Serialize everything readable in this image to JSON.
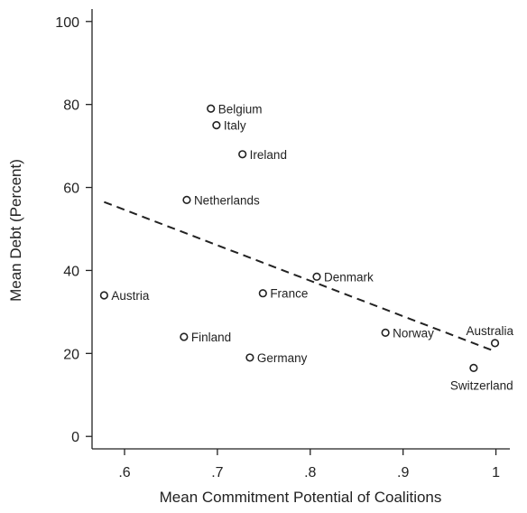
{
  "chart_data": {
    "type": "scatter",
    "xlabel": "Mean Commitment Potential of Coalitions",
    "ylabel": "Mean Debt (Percent)",
    "xlim": [
      0.565,
      1.015
    ],
    "ylim": [
      -3,
      103
    ],
    "x_ticks": [
      0.6,
      0.7,
      0.8,
      0.9,
      1.0
    ],
    "x_tick_labels": [
      ".6",
      ".7",
      ".8",
      ".9",
      "1"
    ],
    "y_ticks": [
      0,
      20,
      40,
      60,
      80,
      100
    ],
    "y_tick_labels": [
      "0",
      "20",
      "40",
      "60",
      "80",
      "100"
    ],
    "grid": false,
    "points": [
      {
        "label": "Belgium",
        "x": 0.693,
        "y": 79,
        "label_pos": "right"
      },
      {
        "label": "Italy",
        "x": 0.699,
        "y": 75,
        "label_pos": "right"
      },
      {
        "label": "Ireland",
        "x": 0.727,
        "y": 68,
        "label_pos": "right"
      },
      {
        "label": "Netherlands",
        "x": 0.667,
        "y": 57,
        "label_pos": "right"
      },
      {
        "label": "Denmark",
        "x": 0.807,
        "y": 38.5,
        "label_pos": "right"
      },
      {
        "label": "Austria",
        "x": 0.578,
        "y": 34,
        "label_pos": "right"
      },
      {
        "label": "France",
        "x": 0.749,
        "y": 34.5,
        "label_pos": "right"
      },
      {
        "label": "Finland",
        "x": 0.664,
        "y": 24,
        "label_pos": "right"
      },
      {
        "label": "Norway",
        "x": 0.881,
        "y": 25,
        "label_pos": "right"
      },
      {
        "label": "Australia",
        "x": 0.999,
        "y": 22.5,
        "label_pos": "above"
      },
      {
        "label": "Germany",
        "x": 0.735,
        "y": 19,
        "label_pos": "right"
      },
      {
        "label": "Switzerland",
        "x": 0.976,
        "y": 16.5,
        "label_pos": "below"
      }
    ],
    "fit_line": {
      "style": "dashed",
      "x": [
        0.578,
        0.999
      ],
      "y": [
        56.5,
        20.5
      ]
    }
  }
}
